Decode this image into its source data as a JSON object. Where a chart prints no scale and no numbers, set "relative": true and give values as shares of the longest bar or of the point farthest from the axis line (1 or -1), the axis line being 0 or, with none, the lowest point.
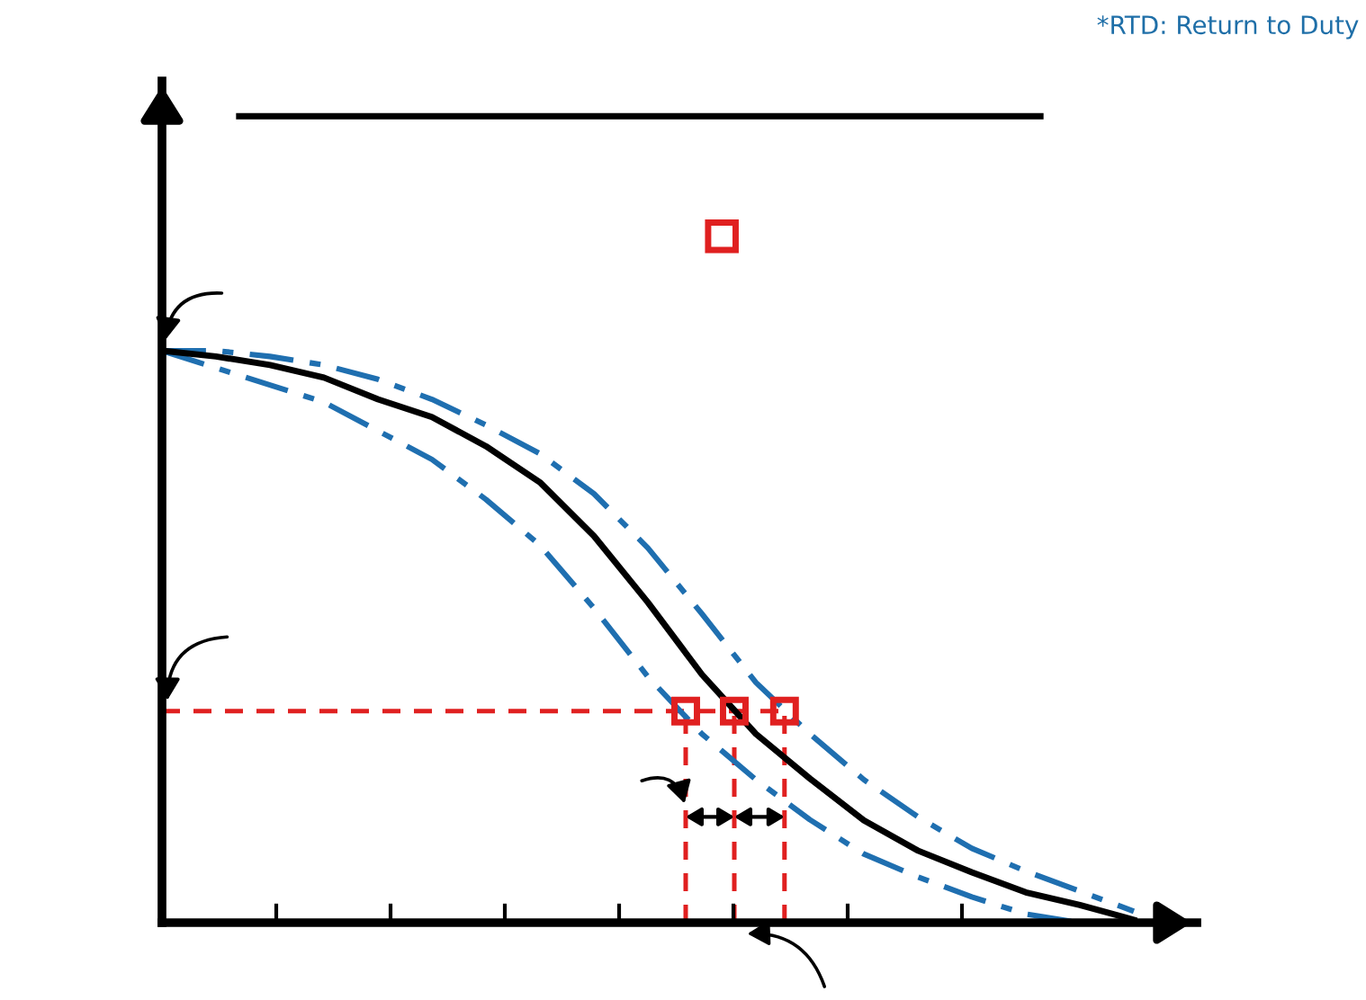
{
  "chart_data": {
    "type": "line",
    "relative": true,
    "annotations": [
      "*RTD: Return to Duty"
    ],
    "categories": [
      null,
      null,
      null,
      null,
      null,
      null,
      null,
      null,
      null,
      null,
      null,
      null,
      null,
      null,
      null,
      null,
      null,
      null,
      null,
      null
    ],
    "grid": false,
    "legend": false,
    "marker": "none",
    "ref_lines": [
      {
        "axis": "y",
        "value": 0.37,
        "color": "#e02020",
        "line_style": "dashed"
      }
    ],
    "series": [
      {
        "color": "#1f6fb0",
        "line_style": "dashdot",
        "values": [
          1.0,
          1.0,
          0.99,
          0.975,
          0.95,
          0.915,
          0.87,
          0.82,
          0.75,
          0.655,
          0.54,
          0.42,
          0.33,
          0.25,
          0.185,
          0.13,
          0.09,
          0.055,
          0.02,
          null
        ]
      },
      {
        "color": "#1f6fb0",
        "line_style": "dashdot",
        "values": [
          1.0,
          0.97,
          0.94,
          0.91,
          0.86,
          0.81,
          0.74,
          0.66,
          0.55,
          0.43,
          0.33,
          0.25,
          0.18,
          0.12,
          0.08,
          0.045,
          0.015,
          0,
          null,
          null
        ]
      },
      {
        "color": "#000000",
        "line_style": "solid",
        "values": [
          1.0,
          0.99,
          0.975,
          0.953,
          0.915,
          0.884,
          0.833,
          0.77,
          0.676,
          0.56,
          0.434,
          0.33,
          0.252,
          0.179,
          0.126,
          0.088,
          0.053,
          0.031,
          0.005,
          null
        ]
      }
    ]
  }
}
